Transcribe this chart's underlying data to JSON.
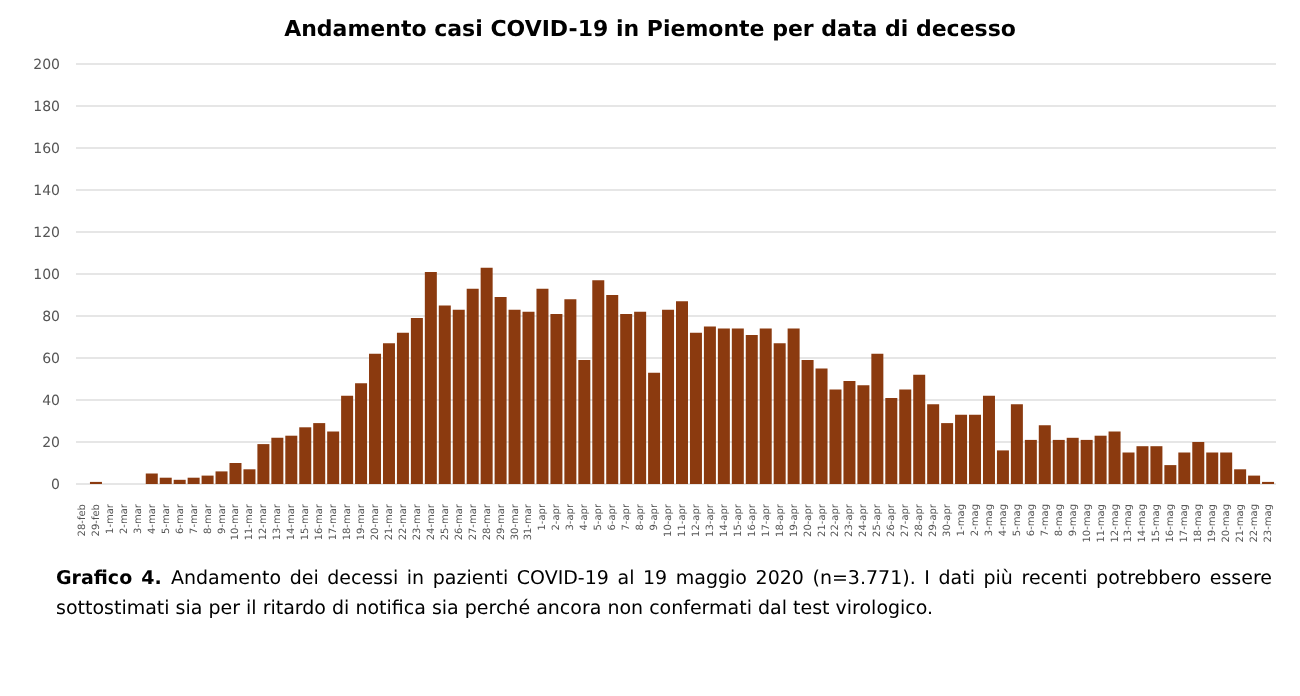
{
  "chart_data": {
    "type": "bar",
    "title": "Andamento casi COVID-19 in Piemonte per data di decesso",
    "categories": [
      "28-feb",
      "29-feb",
      "1-mar",
      "2-mar",
      "3-mar",
      "4-mar",
      "5-mar",
      "6-mar",
      "7-mar",
      "8-mar",
      "9-mar",
      "10-mar",
      "11-mar",
      "12-mar",
      "13-mar",
      "14-mar",
      "15-mar",
      "16-mar",
      "17-mar",
      "18-mar",
      "19-mar",
      "20-mar",
      "21-mar",
      "22-mar",
      "23-mar",
      "24-mar",
      "25-mar",
      "26-mar",
      "27-mar",
      "28-mar",
      "29-mar",
      "30-mar",
      "31-mar",
      "1-apr",
      "2-apr",
      "3-apr",
      "4-apr",
      "5-apr",
      "6-apr",
      "7-apr",
      "8-apr",
      "9-apr",
      "10-apr",
      "11-apr",
      "12-apr",
      "13-apr",
      "14-apr",
      "15-apr",
      "16-apr",
      "17-apr",
      "18-apr",
      "19-apr",
      "20-apr",
      "21-apr",
      "22-apr",
      "23-apr",
      "24-apr",
      "25-apr",
      "26-apr",
      "27-apr",
      "28-apr",
      "29-apr",
      "30-apr",
      "1-mag",
      "2-mag",
      "3-mag",
      "4-mag",
      "5-mag",
      "6-mag",
      "7-mag",
      "8-mag",
      "9-mag",
      "10-mag",
      "11-mag",
      "12-mag",
      "13-mag",
      "14-mag",
      "15-mag",
      "16-mag",
      "17-mag",
      "18-mag",
      "19-mag",
      "20-mag",
      "21-mag",
      "22-mag",
      "23-mag"
    ],
    "values": [
      0,
      1,
      0,
      0,
      0,
      5,
      3,
      2,
      3,
      4,
      6,
      10,
      7,
      19,
      22,
      23,
      27,
      29,
      25,
      42,
      48,
      62,
      67,
      72,
      79,
      101,
      85,
      83,
      93,
      103,
      89,
      83,
      82,
      93,
      81,
      88,
      59,
      97,
      90,
      81,
      82,
      53,
      83,
      87,
      72,
      75,
      74,
      74,
      71,
      74,
      67,
      74,
      59,
      55,
      45,
      49,
      47,
      62,
      41,
      45,
      52,
      38,
      29,
      33,
      33,
      42,
      16,
      38,
      21,
      28,
      21,
      22,
      21,
      23,
      25,
      15,
      18,
      18,
      9,
      15,
      20,
      15,
      15,
      7,
      4,
      1
    ],
    "color": "#8b3a0f",
    "ylim": [
      0,
      200
    ],
    "yticks": [
      0,
      20,
      40,
      60,
      80,
      100,
      120,
      140,
      160,
      180,
      200
    ],
    "grid": "y",
    "annotations": [
      "Grafico 4.",
      "Andamento dei decessi in pazienti COVID-19 al 19 maggio 2020 (n=3.771). I dati più recenti potrebbero essere sottostimati sia per il ritardo di notifica sia perché ancora non confermati dal test virologico."
    ]
  }
}
